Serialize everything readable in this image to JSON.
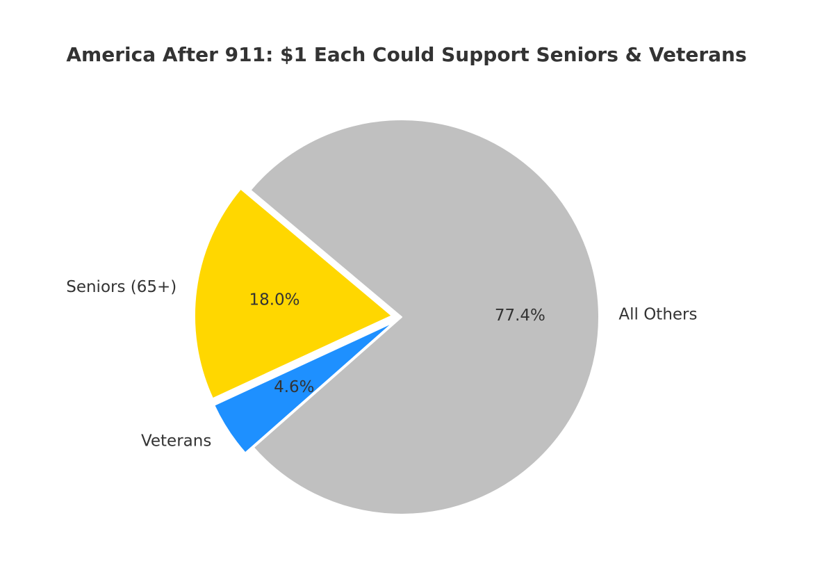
{
  "chart_data": {
    "type": "pie",
    "title": "America After 911: $1 Each Could Support Seniors & Veterans",
    "start_angle_deg": 140,
    "direction": "counterclockwise",
    "slices": [
      {
        "label": "Seniors (65+)",
        "value": 18.0,
        "pct_label": "18.0%",
        "color": "#FFD700",
        "exploded": true
      },
      {
        "label": "Veterans",
        "value": 4.6,
        "pct_label": "4.6%",
        "color": "#1E90FF",
        "exploded": true
      },
      {
        "label": "All Others",
        "value": 77.4,
        "pct_label": "77.4%",
        "color": "#C0C0C0",
        "exploded": false
      }
    ]
  }
}
